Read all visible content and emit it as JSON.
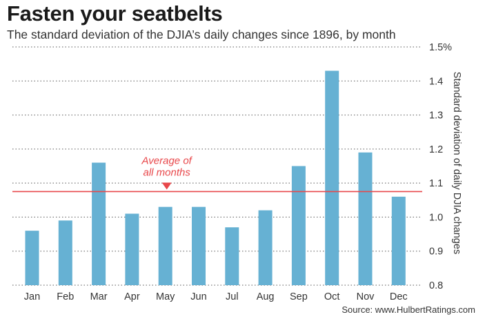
{
  "title": "Fasten your seatbelts",
  "subtitle": "The standard deviation of the DJIA’s daily changes since 1896, by month",
  "source": "Source: www.HulbertRatings.com",
  "colors": {
    "bar": "#66b1d3",
    "average_line": "#e8474a",
    "grid": "#555555"
  },
  "chart_data": {
    "type": "bar",
    "categories": [
      "Jan",
      "Feb",
      "Mar",
      "Apr",
      "May",
      "Jun",
      "Jul",
      "Aug",
      "Sep",
      "Oct",
      "Nov",
      "Dec"
    ],
    "values": [
      0.96,
      0.99,
      1.16,
      1.01,
      1.03,
      1.03,
      0.97,
      1.02,
      1.15,
      1.43,
      1.19,
      1.06
    ],
    "ylim": [
      0.8,
      1.5
    ],
    "yticks": [
      0.8,
      0.9,
      1.0,
      1.1,
      1.2,
      1.3,
      1.4,
      1.5
    ],
    "ytick_labels": [
      "0.8",
      "0.9",
      "1.0",
      "1.1",
      "1.2",
      "1.3",
      "1.4",
      "1.5%"
    ],
    "ylabel": "Standard deviation of daily DJIA changes",
    "xlabel": "",
    "grid": "dotted horizontal",
    "y_axis_side": "right",
    "reference_line": {
      "value": 1.075,
      "label_line1": "Average of",
      "label_line2": "all months",
      "marker_category": "May"
    }
  }
}
